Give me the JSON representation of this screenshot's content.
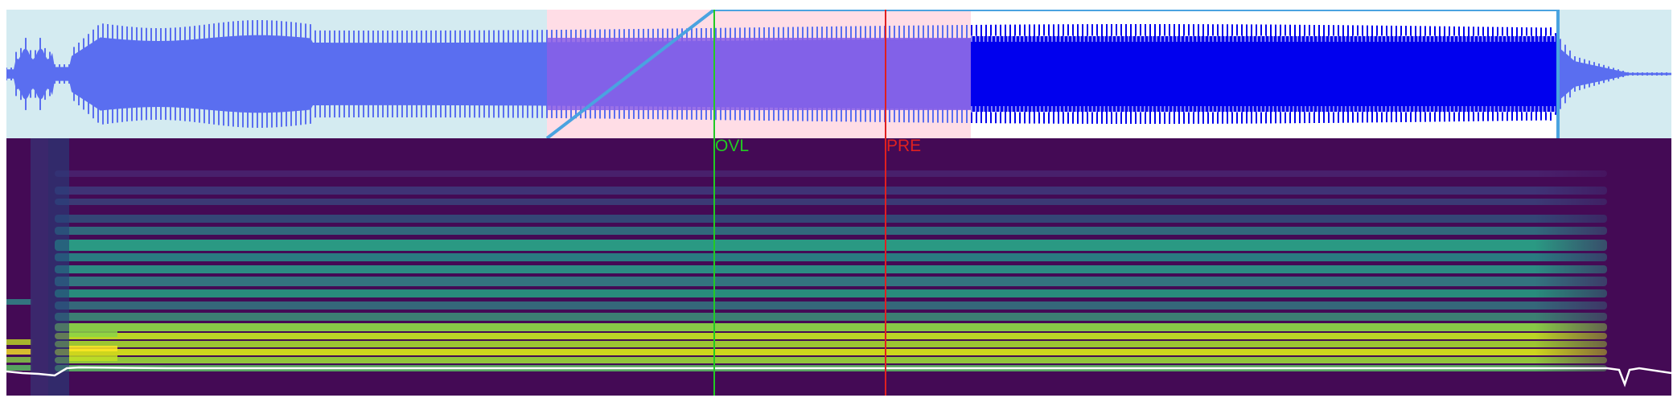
{
  "markers": {
    "overlap": {
      "label": "OVL",
      "color": "#22cc22"
    },
    "preutterance": {
      "label": "PRE",
      "color": "#e02020"
    }
  },
  "colors": {
    "waveform_bg": "#d4ebf1",
    "waveform_fill": "#5a6ef0",
    "waveform_selected": "#0000ee",
    "selection_region": "#ffdde6",
    "envelope_line": "#4aa3e0",
    "spectrogram_bg": "#440a55",
    "pitch_curve": "#ffffff"
  },
  "icons": {
    "overlap_marker": "vertical-line",
    "preutterance_marker": "vertical-line"
  }
}
